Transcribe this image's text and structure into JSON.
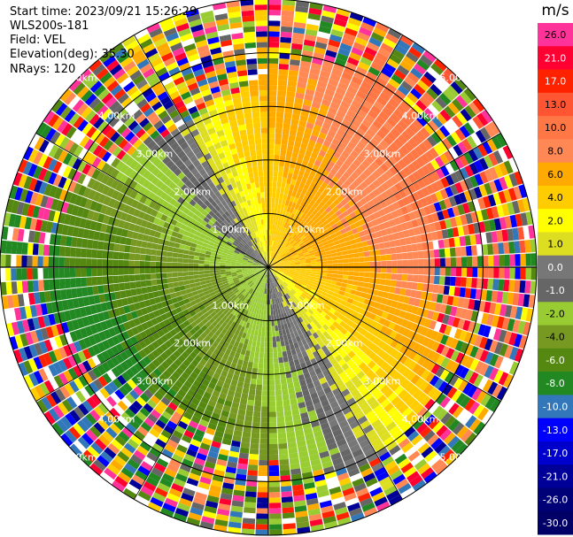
{
  "info": {
    "start_time": "Start time: 2023/09/21 15:26:29",
    "instrument": "WLS200s-181",
    "field": "Field: VEL",
    "elevation": "Elevation(deg): 35.30",
    "nrays": "NRays: 120"
  },
  "chart_data": {
    "type": "heatmap",
    "projection": "polar (PPI scan)",
    "field": "VEL",
    "units": "m/s",
    "nrays": 120,
    "range_rings_km": [
      1.0,
      2.0,
      3.0,
      4.0,
      5.0
    ],
    "range_labels": [
      "1.00km",
      "2.00km",
      "3.00km",
      "4.00km",
      "5.00km"
    ],
    "max_range_km": 5.0,
    "radial_spokes_deg": [
      0,
      30,
      60,
      90,
      120,
      150,
      180,
      210,
      240,
      270,
      300,
      330
    ],
    "colorbar": {
      "title": "m/s",
      "tick_labels": [
        "26.0",
        "21.0",
        "17.0",
        "13.0",
        "10.0",
        "8.0",
        "6.0",
        "4.0",
        "2.0",
        "1.0",
        "0.0",
        "-1.0",
        "-2.0",
        "-4.0",
        "-6.0",
        "-8.0",
        "-10.0",
        "-13.0",
        "-17.0",
        "-21.0",
        "-26.0",
        "-30.0"
      ],
      "colors": [
        "#ff3399",
        "#ff0033",
        "#ff2200",
        "#ff5533",
        "#ff7744",
        "#ff8855",
        "#ffaa00",
        "#ffcc00",
        "#ffff00",
        "#dddd22",
        "#777777",
        "#666666",
        "#99cc33",
        "#779922",
        "#558811",
        "#228822",
        "#3377bb",
        "#0000ff",
        "#0000cc",
        "#000099",
        "#000077",
        "#000066"
      ]
    },
    "pattern": {
      "inbound_azimuth_deg": 240,
      "outbound_azimuth_deg": 60,
      "noise_start_km": 3.6
    }
  }
}
